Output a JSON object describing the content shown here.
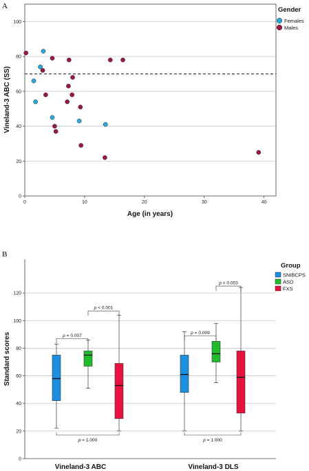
{
  "chart_data": [
    {
      "panel": "A",
      "type": "scatter",
      "xlabel": "Age (in years)",
      "ylabel": "Vineland-3 ABC (SS)",
      "xlim": [
        0,
        42
      ],
      "ylim": [
        0,
        110
      ],
      "x_ticks": [
        "0",
        "10",
        "20",
        "30",
        "40"
      ],
      "y_ticks": [
        "0",
        "20",
        "40",
        "60",
        "80",
        "100"
      ],
      "grid": "horizontal",
      "reference_line": 70,
      "legend": {
        "title": "Gender",
        "position": "top-right"
      },
      "series": [
        {
          "name": "Females",
          "color": "#29a8e0",
          "points": [
            [
              1.5,
              66
            ],
            [
              1.8,
              54
            ],
            [
              2.6,
              74
            ],
            [
              3.1,
              83
            ],
            [
              4.6,
              45
            ],
            [
              9.1,
              43
            ],
            [
              13.5,
              41
            ]
          ]
        },
        {
          "name": "Males",
          "color": "#9b1840",
          "points": [
            [
              0.2,
              82
            ],
            [
              3.0,
              72
            ],
            [
              3.5,
              58
            ],
            [
              4.6,
              79
            ],
            [
              5.0,
              40
            ],
            [
              5.2,
              37
            ],
            [
              7.1,
              54
            ],
            [
              7.3,
              63
            ],
            [
              7.4,
              78
            ],
            [
              7.9,
              58
            ],
            [
              8.0,
              68
            ],
            [
              9.3,
              51
            ],
            [
              9.4,
              29
            ],
            [
              13.4,
              22
            ],
            [
              14.3,
              78
            ],
            [
              16.4,
              78
            ],
            [
              39.1,
              25
            ]
          ]
        }
      ]
    },
    {
      "panel": "B",
      "type": "box",
      "ylabel": "Standard scores",
      "ylim": [
        0,
        140
      ],
      "y_ticks": [
        "0",
        "20",
        "40",
        "60",
        "80",
        "100",
        "120"
      ],
      "grid": "horizontal",
      "categories": [
        "Vineland-3 ABC",
        "Vineland-3 DLS"
      ],
      "legend": {
        "title": "Group",
        "position": "top-right"
      },
      "series": [
        {
          "name": "SNIBCPS",
          "color": "#1d8fe0",
          "boxes": [
            {
              "min": 22,
              "q1": 42,
              "median": 58,
              "q3": 75,
              "max": 83
            },
            {
              "min": 20,
              "q1": 48,
              "median": 61,
              "q3": 75,
              "max": 92
            }
          ]
        },
        {
          "name": "ASD",
          "color": "#22bb2e",
          "boxes": [
            {
              "min": 51,
              "q1": 67,
              "median": 75,
              "q3": 78,
              "max": 86
            },
            {
              "min": 55,
              "q1": 70,
              "median": 76,
              "q3": 85,
              "max": 98
            }
          ]
        },
        {
          "name": "FXS",
          "color": "#e8123f",
          "boxes": [
            {
              "min": 20,
              "q1": 29,
              "median": 53,
              "q3": 69,
              "max": 104
            },
            {
              "min": 20,
              "q1": 33,
              "median": 59,
              "q3": 78,
              "max": 124
            }
          ]
        }
      ],
      "annotations": [
        {
          "category": 0,
          "from": 0,
          "to": 1,
          "y": 87,
          "text": "= 0.007"
        },
        {
          "category": 0,
          "from": 1,
          "to": 2,
          "y": 107,
          "text": "< 0.001"
        },
        {
          "category": 0,
          "from": 0,
          "to": 2,
          "y": 17,
          "text": "= 1.000",
          "below": true
        },
        {
          "category": 1,
          "from": 0,
          "to": 1,
          "y": 89,
          "text": "= 0.009"
        },
        {
          "category": 1,
          "from": 1,
          "to": 2,
          "y": 125,
          "text": "= 0.003"
        },
        {
          "category": 1,
          "from": 0,
          "to": 2,
          "y": 17,
          "text": "= 1.000",
          "below": true
        }
      ]
    }
  ],
  "panel_labels": {
    "a": "A",
    "b": "B"
  },
  "p_symbol": "p"
}
